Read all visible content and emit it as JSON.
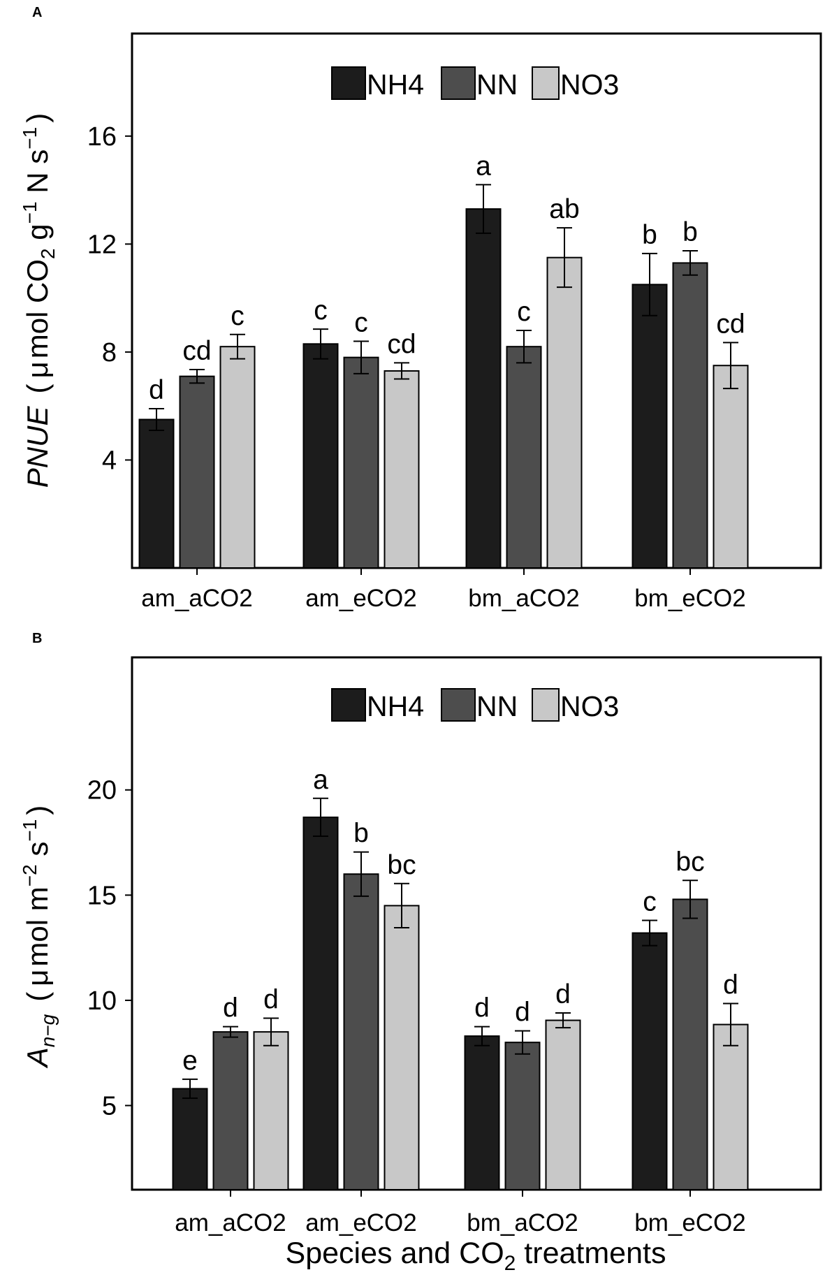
{
  "chart_data": [
    {
      "panel": "A",
      "type": "bar",
      "categories": [
        "am_aCO2",
        "am_eCO2",
        "bm_aCO2",
        "bm_eCO2"
      ],
      "series": [
        {
          "name": "NH4",
          "color": "#1c1c1c",
          "values": [
            5.5,
            8.3,
            13.3,
            10.5
          ],
          "errors": [
            0.4,
            0.55,
            0.9,
            1.15
          ],
          "letters": [
            "d",
            "c",
            "a",
            "b"
          ]
        },
        {
          "name": "NN",
          "color": "#4d4d4d",
          "values": [
            7.1,
            7.8,
            8.2,
            11.3
          ],
          "errors": [
            0.25,
            0.6,
            0.6,
            0.45
          ],
          "letters": [
            "cd",
            "c",
            "c",
            "b"
          ]
        },
        {
          "name": "NO3",
          "color": "#c8c8c8",
          "values": [
            8.2,
            7.3,
            11.5,
            7.5
          ],
          "errors": [
            0.45,
            0.3,
            1.1,
            0.85
          ],
          "letters": [
            "c",
            "cd",
            "ab",
            "cd"
          ]
        }
      ],
      "ylim": [
        0,
        19.8
      ],
      "yticks": [
        4,
        8,
        12,
        16
      ],
      "ylabel": {
        "name": "PNUE",
        "open": "(",
        "mu": "μ",
        "unit1": "mol CO",
        "sub1": "2",
        "unit2": " g",
        "sup1": "−1",
        "unit3": " N s",
        "sup2": "−1",
        "close": ")"
      },
      "legend_position": "top-center"
    },
    {
      "panel": "B",
      "type": "bar",
      "categories": [
        "am_aCO2",
        "am_eCO2",
        "bm_aCO2",
        "bm_eCO2"
      ],
      "series": [
        {
          "name": "NH4",
          "color": "#1c1c1c",
          "values": [
            5.8,
            18.7,
            8.3,
            13.2
          ],
          "errors": [
            0.45,
            0.9,
            0.45,
            0.6
          ],
          "letters": [
            "e",
            "a",
            "d",
            "c"
          ]
        },
        {
          "name": "NN",
          "color": "#4d4d4d",
          "values": [
            8.5,
            16.0,
            8.0,
            14.8
          ],
          "errors": [
            0.25,
            1.05,
            0.55,
            0.9
          ],
          "letters": [
            "d",
            "b",
            "d",
            "bc"
          ]
        },
        {
          "name": "NO3",
          "color": "#c8c8c8",
          "values": [
            8.5,
            14.5,
            9.05,
            8.85
          ],
          "errors": [
            0.65,
            1.05,
            0.35,
            1.0
          ],
          "letters": [
            "d",
            "bc",
            "d",
            "d"
          ]
        }
      ],
      "ylim": [
        1,
        26.3
      ],
      "yticks": [
        5,
        10,
        15,
        20
      ],
      "ylabel": {
        "name": "A",
        "namesub": "n−g",
        "open": "(",
        "mu": "μ",
        "unit1": "mol m",
        "sup1": "−2",
        "unit2": " s",
        "sup2": "−1",
        "close": ")"
      },
      "xlabel": {
        "text": "Species and CO",
        "sub": "2",
        "tail": " treatments"
      },
      "legend_position": "top-center"
    }
  ]
}
